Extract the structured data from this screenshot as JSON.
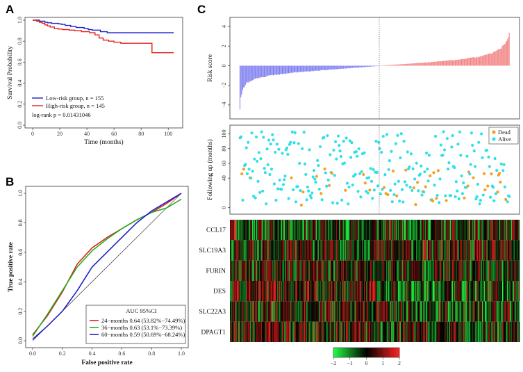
{
  "chart_data": [
    {
      "panel": "A",
      "type": "line",
      "title": "",
      "xlabel": "Time (months)",
      "ylabel": "Survival Probability",
      "xlim": [
        0,
        105
      ],
      "ylim": [
        0,
        1
      ],
      "xticks": [
        "0",
        "20",
        "40",
        "60",
        "80",
        "100"
      ],
      "yticks": [
        "0.0",
        "0.2",
        "0.4",
        "0.6",
        "0.8",
        "1.0"
      ],
      "series": [
        {
          "name": "Low-risk group, n = 155",
          "color": "#1f1fc8",
          "x": [
            0,
            4,
            5,
            7,
            9,
            11,
            14,
            19,
            21,
            24,
            28,
            32,
            38,
            41,
            44,
            50,
            55,
            60,
            80,
            104
          ],
          "y": [
            1,
            1,
            0.99,
            0.99,
            0.98,
            0.975,
            0.97,
            0.965,
            0.96,
            0.95,
            0.94,
            0.93,
            0.92,
            0.91,
            0.905,
            0.89,
            0.88,
            0.88,
            0.88,
            0.88
          ]
        },
        {
          "name": "High-risk group, n = 145",
          "color": "#e0201c",
          "x": [
            0,
            3,
            5,
            7,
            9,
            11,
            13,
            16,
            19,
            22,
            27,
            31,
            36,
            42,
            46,
            49,
            52,
            56,
            60,
            65,
            73,
            80,
            88,
            104
          ],
          "y": [
            1,
            0.99,
            0.98,
            0.97,
            0.955,
            0.945,
            0.935,
            0.92,
            0.915,
            0.91,
            0.905,
            0.9,
            0.89,
            0.88,
            0.86,
            0.83,
            0.81,
            0.8,
            0.79,
            0.78,
            0.78,
            0.78,
            0.69,
            0.69
          ]
        }
      ],
      "annotation": "log-rank p = 0.01431046",
      "legend_position": "bottom-left"
    },
    {
      "panel": "B",
      "type": "line",
      "xlabel": "False positive rate",
      "ylabel": "True positive rate",
      "xlim": [
        0,
        1
      ],
      "ylim": [
        0,
        1
      ],
      "xticks": [
        "0.0",
        "0.2",
        "0.4",
        "0.6",
        "0.8",
        "1.0"
      ],
      "yticks": [
        "0.0",
        "0.2",
        "0.4",
        "0.6",
        "0.8",
        "1.0"
      ],
      "legend_title": "AUC 95%CI",
      "series": [
        {
          "name": "24−months 0.64 (53.82%−74.49%)",
          "color": "#e0201c",
          "x": [
            0,
            0.1,
            0.2,
            0.3,
            0.4,
            0.5,
            0.6,
            0.7,
            0.8,
            0.9,
            1.0
          ],
          "y": [
            0.04,
            0.17,
            0.33,
            0.52,
            0.63,
            0.7,
            0.76,
            0.82,
            0.87,
            0.93,
            1.0
          ]
        },
        {
          "name": "36−months 0.63 (53.1%−73.39%)",
          "color": "#22b022",
          "x": [
            0,
            0.1,
            0.2,
            0.3,
            0.4,
            0.5,
            0.6,
            0.7,
            0.8,
            0.9,
            1.0
          ],
          "y": [
            0.03,
            0.18,
            0.34,
            0.5,
            0.61,
            0.69,
            0.76,
            0.82,
            0.87,
            0.9,
            0.96
          ]
        },
        {
          "name": "60−months 0.59 (50.69%−68.24%)",
          "color": "#1f1fc8",
          "x": [
            0,
            0.1,
            0.2,
            0.3,
            0.4,
            0.5,
            0.6,
            0.7,
            0.8,
            0.9,
            1.0
          ],
          "y": [
            0.01,
            0.1,
            0.2,
            0.34,
            0.5,
            0.6,
            0.7,
            0.8,
            0.88,
            0.94,
            1.0
          ]
        }
      ],
      "reference_line": "diagonal",
      "legend_position": "bottom-right"
    },
    {
      "panel": "C",
      "type": "bar",
      "subplot": "risk score",
      "ylabel": "Risk score",
      "ylim": [
        -5,
        4.5
      ],
      "yticks": [
        "−4",
        "−2",
        "0",
        "2",
        "4"
      ],
      "n_patients": 300,
      "n_low": 155,
      "low_color": "#7b7bf0",
      "high_color": "#f08080",
      "risk_profile": {
        "min": -4.6,
        "max": 4.1,
        "low_segment_points": [
          [
            0,
            -4.6
          ],
          [
            1,
            -3.2
          ],
          [
            3,
            -2.4
          ],
          [
            7,
            -1.8
          ],
          [
            15,
            -1.4
          ],
          [
            30,
            -1.05
          ],
          [
            60,
            -0.7
          ],
          [
            100,
            -0.4
          ],
          [
            130,
            -0.2
          ],
          [
            155,
            -0.02
          ]
        ],
        "high_segment_points": [
          [
            156,
            0.02
          ],
          [
            180,
            0.15
          ],
          [
            210,
            0.35
          ],
          [
            240,
            0.6
          ],
          [
            265,
            0.9
          ],
          [
            280,
            1.3
          ],
          [
            290,
            1.8
          ],
          [
            295,
            2.3
          ],
          [
            298,
            3.0
          ],
          [
            300,
            4.1
          ]
        ]
      }
    },
    {
      "panel": "C",
      "type": "scatter",
      "subplot": "follow-up",
      "ylabel": "Following up (months)",
      "ylim": [
        -5,
        108
      ],
      "yticks": [
        "0",
        "40",
        "60",
        "80",
        "100"
      ],
      "legend": [
        {
          "name": "Dead",
          "color": "#f5a020"
        },
        {
          "name": "Alive",
          "color": "#30e0e8"
        }
      ],
      "legend_position": "top-right",
      "seed": 7
    },
    {
      "panel": "C",
      "type": "heatmap",
      "subplot": "expression",
      "genes": [
        "CCL17",
        "SLC19A3",
        "FURIN",
        "DES",
        "SLC22A3",
        "DPAGT1"
      ],
      "colorbar": {
        "ticks": [
          "−2",
          "−1",
          "0",
          "1",
          "2"
        ],
        "low": "#22ff44",
        "mid": "#000000",
        "high": "#ff2222"
      }
    }
  ],
  "panel_labels": {
    "a": "A",
    "b": "B",
    "c": "C"
  }
}
